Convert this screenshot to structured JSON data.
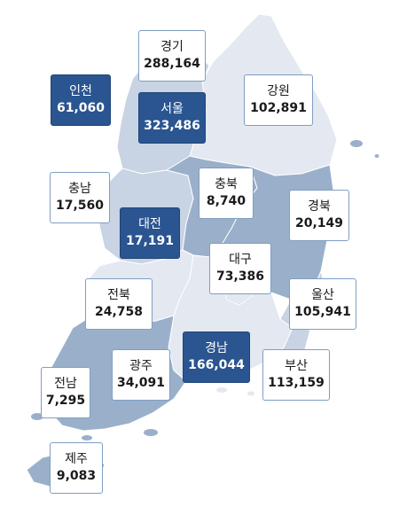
{
  "colors": {
    "light": "#e3e8f1",
    "medium": "#c8d3e3",
    "dark": "#9ab0ca",
    "highlight": "#2a5590",
    "border": "#7f9ec2"
  },
  "regions": {
    "gyeonggi": {
      "name": "경기",
      "value": "288,164",
      "highlight": false
    },
    "incheon": {
      "name": "인천",
      "value": "61,060",
      "highlight": true
    },
    "seoul": {
      "name": "서울",
      "value": "323,486",
      "highlight": true
    },
    "gangwon": {
      "name": "강원",
      "value": "102,891",
      "highlight": false
    },
    "chungnam": {
      "name": "충남",
      "value": "17,560",
      "highlight": false
    },
    "chungbuk": {
      "name": "충북",
      "value": "8,740",
      "highlight": false
    },
    "daejeon": {
      "name": "대전",
      "value": "17,191",
      "highlight": true
    },
    "gyeongbuk": {
      "name": "경북",
      "value": "20,149",
      "highlight": false
    },
    "daegu": {
      "name": "대구",
      "value": "73,386",
      "highlight": false
    },
    "jeonbuk": {
      "name": "전북",
      "value": "24,758",
      "highlight": false
    },
    "ulsan": {
      "name": "울산",
      "value": "105,941",
      "highlight": false
    },
    "gwangju": {
      "name": "광주",
      "value": "34,091",
      "highlight": false
    },
    "gyeongnam": {
      "name": "경남",
      "value": "166,044",
      "highlight": true
    },
    "busan": {
      "name": "부산",
      "value": "113,159",
      "highlight": false
    },
    "jeonnam": {
      "name": "전남",
      "value": "7,295",
      "highlight": false
    },
    "jeju": {
      "name": "제주",
      "value": "9,083",
      "highlight": false
    }
  }
}
